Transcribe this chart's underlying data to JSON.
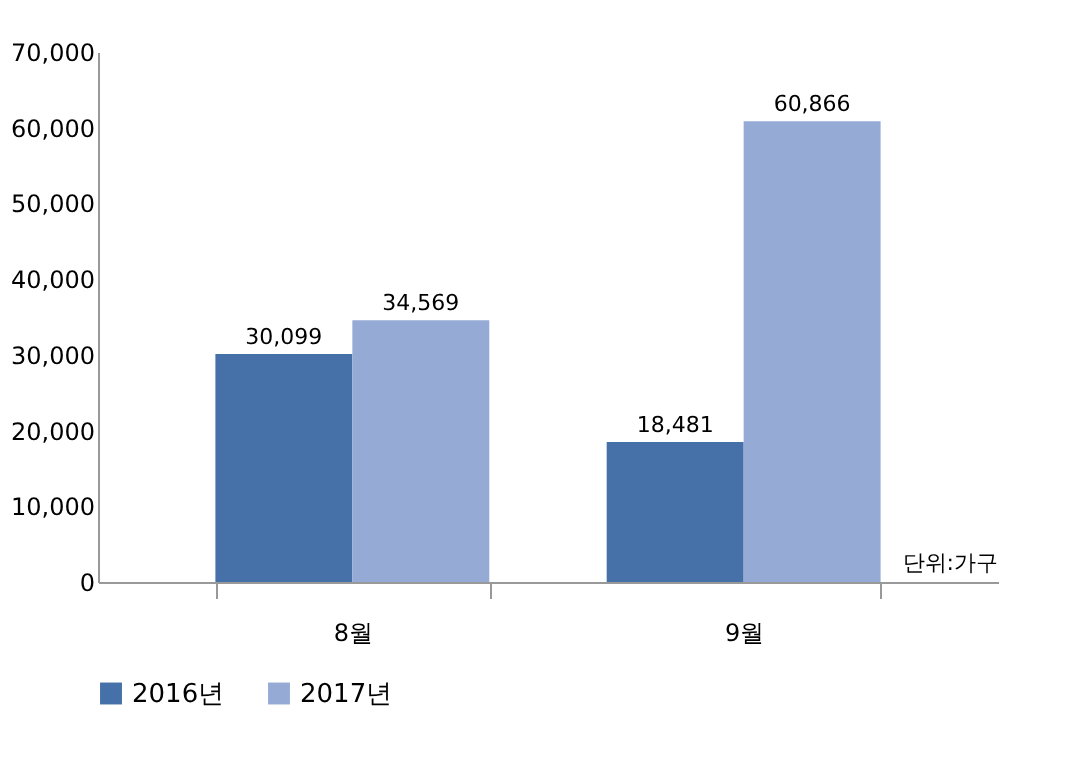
{
  "chart_data": {
    "type": "bar",
    "categories": [
      "8월",
      "9월"
    ],
    "series": [
      {
        "name": "2016년",
        "color": "#4670a8",
        "values": [
          30099,
          18481
        ],
        "value_labels": [
          "30,099",
          "18,481"
        ]
      },
      {
        "name": "2017년",
        "color": "#95abd6",
        "values": [
          34569,
          60866
        ],
        "value_labels": [
          "34,569",
          "60,866"
        ]
      }
    ],
    "ylim": [
      0,
      70000
    ],
    "yticks": [
      0,
      {
        "value": 10000,
        "label": "10,000"
      },
      {
        "value": 20000,
        "label": "20,000"
      },
      {
        "value": 30000,
        "label": "30,000"
      },
      {
        "value": 40000,
        "label": "40,000"
      },
      {
        "value": 50000,
        "label": "50,000"
      },
      {
        "value": 60000,
        "label": "60,000"
      },
      {
        "value": 70000,
        "label": "70,000"
      }
    ],
    "data_labels": true,
    "grid": false,
    "legend": "bottom",
    "annotations": [
      "단위:가구"
    ]
  }
}
